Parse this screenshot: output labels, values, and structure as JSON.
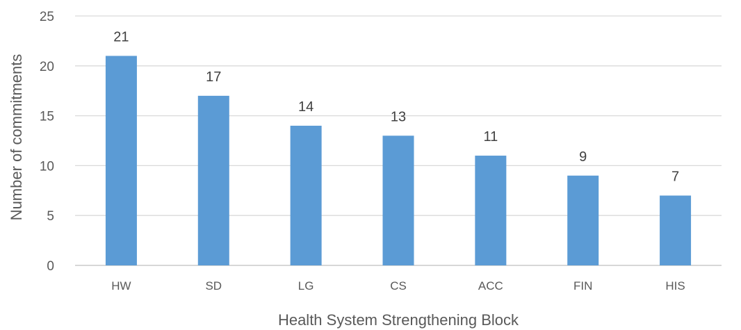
{
  "chart_data": {
    "type": "bar",
    "title": "",
    "xlabel": "Health System Strengthening Block",
    "ylabel": "Number of commitments",
    "categories": [
      "HW",
      "SD",
      "LG",
      "CS",
      "ACC",
      "FIN",
      "HIS"
    ],
    "values": [
      21,
      17,
      14,
      13,
      11,
      9,
      7
    ],
    "ylim": [
      0,
      25
    ],
    "yticks": [
      0,
      5,
      10,
      15,
      20,
      25
    ],
    "grid": true,
    "legend": "none",
    "bar_color": "#5b9bd5",
    "data_labels": true
  }
}
